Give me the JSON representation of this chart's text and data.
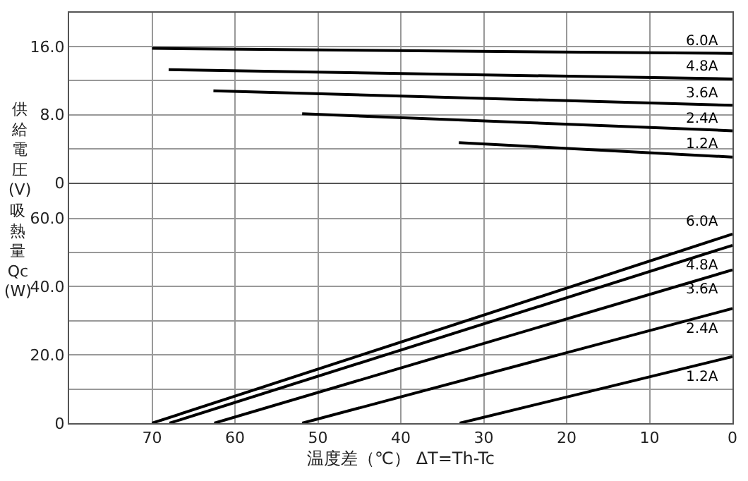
{
  "chart_data": [
    {
      "type": "line",
      "ylabel": "供給電圧(V)",
      "xlim": [
        80,
        0
      ],
      "xticks": [
        70,
        60,
        50,
        40,
        30,
        20,
        10,
        0
      ],
      "ylim": [
        0,
        20
      ],
      "yticks": [
        0,
        {
          "value": 4,
          "label": null
        },
        {
          "value": 8,
          "label": "8.0"
        },
        {
          "value": 12,
          "label": null
        },
        {
          "value": 16,
          "label": "16.0"
        }
      ],
      "grid": true,
      "tick_labels": "y",
      "line_style": "solid",
      "marker": "none",
      "series": [
        {
          "name": "6.0A",
          "color": "#000000",
          "x": [
            70,
            0
          ],
          "values": [
            15.8,
            15.2
          ]
        },
        {
          "name": "4.8A",
          "color": "#000000",
          "x": [
            68,
            0
          ],
          "values": [
            13.3,
            12.2
          ]
        },
        {
          "name": "3.6A",
          "color": "#000000",
          "x": [
            62.6,
            0
          ],
          "values": [
            10.8,
            9.1
          ]
        },
        {
          "name": "2.4A",
          "color": "#000000",
          "x": [
            51.9,
            0
          ],
          "values": [
            8.1,
            6.1
          ]
        },
        {
          "name": "1.2A",
          "color": "#000000",
          "x": [
            33,
            0
          ],
          "values": [
            4.7,
            3.0
          ]
        }
      ]
    },
    {
      "type": "line",
      "ylabel": "吸熱量Qc(W)",
      "xlabel": "温度差（℃） ΔT=Th-Tc",
      "xlim": [
        80,
        0
      ],
      "xticks": [
        70,
        60,
        50,
        40,
        30,
        20,
        10,
        0
      ],
      "ylim": [
        0,
        70
      ],
      "yticks": [
        0,
        {
          "value": 10,
          "label": null
        },
        {
          "value": 20,
          "label": "20.0"
        },
        {
          "value": 30,
          "label": null
        },
        {
          "value": 40,
          "label": "40.0"
        },
        {
          "value": 50,
          "label": null
        },
        {
          "value": 60,
          "label": "60.0"
        }
      ],
      "grid": true,
      "line_style": "solid",
      "marker": "none",
      "series": [
        {
          "name": "6.0A",
          "color": "#000000",
          "x": [
            70,
            0
          ],
          "values": [
            0,
            55.4
          ]
        },
        {
          "name": "4.8A",
          "color": "#000000",
          "x": [
            67.9,
            0
          ],
          "values": [
            0,
            52.1
          ]
        },
        {
          "name": "3.6A",
          "color": "#000000",
          "x": [
            62.5,
            0
          ],
          "values": [
            0,
            44.9
          ]
        },
        {
          "name": "2.4A",
          "color": "#000000",
          "x": [
            51.9,
            0
          ],
          "values": [
            0,
            33.6
          ]
        },
        {
          "name": "1.2A",
          "color": "#000000",
          "x": [
            32.9,
            0
          ],
          "values": [
            0,
            19.5
          ]
        }
      ]
    }
  ]
}
